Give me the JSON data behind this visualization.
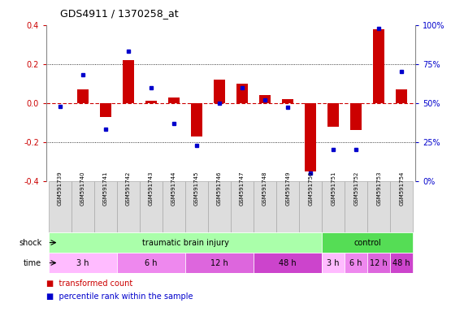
{
  "title": "GDS4911 / 1370258_at",
  "samples": [
    "GSM591739",
    "GSM591740",
    "GSM591741",
    "GSM591742",
    "GSM591743",
    "GSM591744",
    "GSM591745",
    "GSM591746",
    "GSM591747",
    "GSM591748",
    "GSM591749",
    "GSM591750",
    "GSM591751",
    "GSM591752",
    "GSM591753",
    "GSM591754"
  ],
  "transformed_count": [
    0.0,
    0.07,
    -0.07,
    0.22,
    0.01,
    0.03,
    -0.17,
    0.12,
    0.1,
    0.04,
    0.02,
    -0.35,
    -0.12,
    -0.14,
    0.38,
    0.07
  ],
  "percentile_rank": [
    48,
    68,
    33,
    83,
    60,
    37,
    23,
    50,
    60,
    52,
    47,
    5,
    20,
    20,
    98,
    70
  ],
  "ylim_left": [
    -0.4,
    0.4
  ],
  "yticks_left": [
    -0.4,
    -0.2,
    0.0,
    0.2,
    0.4
  ],
  "yticks_right": [
    0,
    25,
    50,
    75,
    100
  ],
  "ytick_labels_right": [
    "0%",
    "25%",
    "50%",
    "75%",
    "100%"
  ],
  "bar_color": "#cc0000",
  "dot_color": "#0000cc",
  "shock_groups": [
    {
      "label": "traumatic brain injury",
      "start": 0,
      "end": 11,
      "color": "#aaffaa"
    },
    {
      "label": "control",
      "start": 12,
      "end": 15,
      "color": "#55dd55"
    }
  ],
  "time_groups": [
    {
      "label": "3 h",
      "start": 0,
      "end": 2,
      "color": "#ffbbff"
    },
    {
      "label": "6 h",
      "start": 3,
      "end": 5,
      "color": "#ee88ee"
    },
    {
      "label": "12 h",
      "start": 6,
      "end": 8,
      "color": "#dd66dd"
    },
    {
      "label": "48 h",
      "start": 9,
      "end": 11,
      "color": "#cc44cc"
    },
    {
      "label": "3 h",
      "start": 12,
      "end": 12,
      "color": "#ffbbff"
    },
    {
      "label": "6 h",
      "start": 13,
      "end": 13,
      "color": "#ee88ee"
    },
    {
      "label": "12 h",
      "start": 14,
      "end": 14,
      "color": "#dd66dd"
    },
    {
      "label": "48 h",
      "start": 15,
      "end": 15,
      "color": "#cc44cc"
    }
  ],
  "bg_color": "#ffffff",
  "zero_line_color": "#cc0000",
  "dotted_line_color": "#000000",
  "sample_box_color": "#dddddd",
  "sample_box_edge": "#aaaaaa",
  "left_label_color": "#cc0000",
  "right_label_color": "#0000cc"
}
